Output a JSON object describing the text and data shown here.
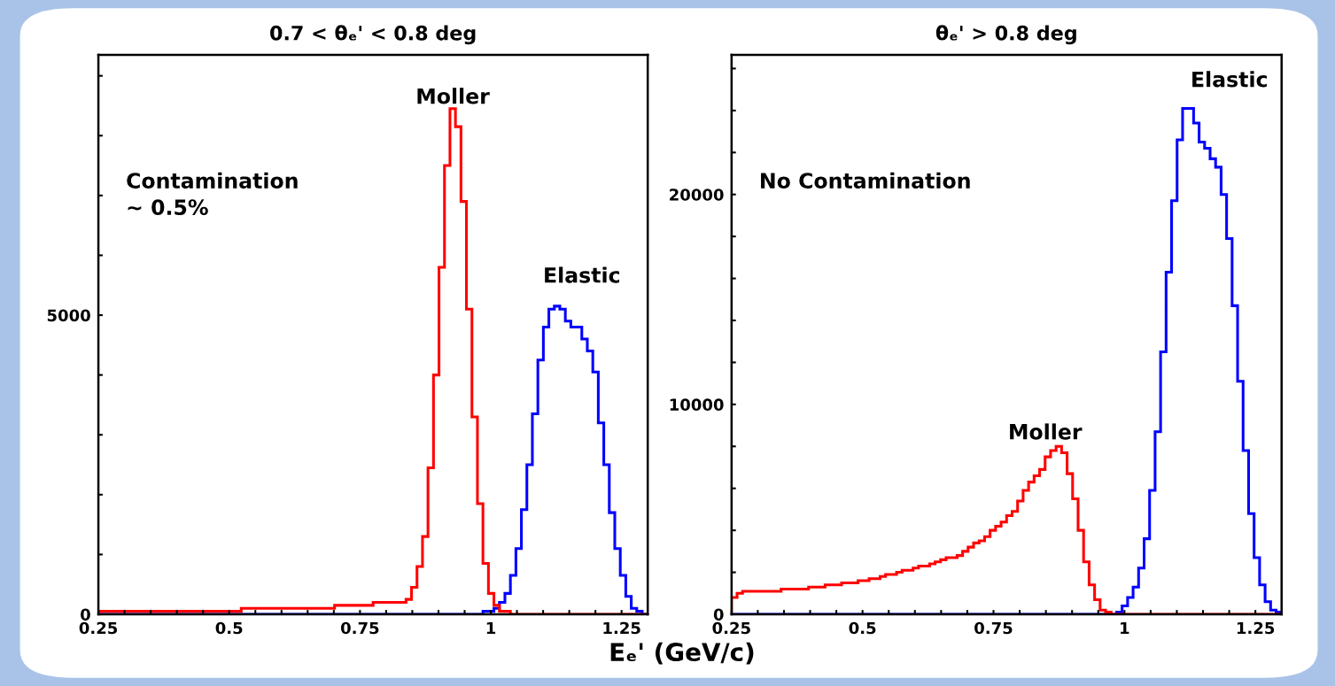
{
  "chart_data": [
    {
      "type": "histogram",
      "title": "0.7 < θₑ' < 0.8 deg",
      "bins": [
        0.25,
        0.2605,
        0.271,
        0.2815,
        0.292,
        0.3025,
        0.313,
        0.3235,
        0.334,
        0.3445,
        0.355,
        0.3655,
        0.376,
        0.3865,
        0.397,
        0.4075,
        0.418,
        0.4285,
        0.439,
        0.4495,
        0.46,
        0.4705,
        0.481,
        0.4915,
        0.502,
        0.5125,
        0.523,
        0.5335,
        0.544,
        0.5545,
        0.565,
        0.5755,
        0.586,
        0.5965,
        0.607,
        0.6175,
        0.628,
        0.6385,
        0.649,
        0.6595,
        0.67,
        0.6805,
        0.691,
        0.7015,
        0.712,
        0.7225,
        0.733,
        0.7435,
        0.754,
        0.7645,
        0.775,
        0.7855,
        0.796,
        0.8065,
        0.817,
        0.8275,
        0.838,
        0.8485,
        0.859,
        0.8695,
        0.88,
        0.8905,
        0.901,
        0.9115,
        0.922,
        0.9325,
        0.943,
        0.9535,
        0.964,
        0.9745,
        0.985,
        0.9955,
        1.006,
        1.0165,
        1.027,
        1.0375,
        1.048,
        1.0585,
        1.069,
        1.0795,
        1.09,
        1.1005,
        1.111,
        1.1215,
        1.132,
        1.1425,
        1.153,
        1.1635,
        1.174,
        1.1845,
        1.195,
        1.2055,
        1.216,
        1.2265,
        1.237,
        1.2475,
        1.258,
        1.2685,
        1.279,
        1.2895,
        1.3
      ],
      "series": [
        {
          "color": "#0000ff",
          "values": [
            0,
            0,
            0,
            0,
            0,
            0,
            0,
            0,
            0,
            0,
            0,
            0,
            0,
            0,
            0,
            0,
            0,
            0,
            0,
            0,
            0,
            0,
            0,
            0,
            0,
            0,
            0,
            0,
            0,
            0,
            0,
            0,
            0,
            0,
            0,
            0,
            0,
            0,
            0,
            0,
            0,
            0,
            0,
            0,
            0,
            0,
            0,
            0,
            0,
            0,
            0,
            0,
            0,
            0,
            0,
            0,
            0,
            0,
            0,
            0,
            0,
            0,
            0,
            0,
            0,
            0,
            0,
            0,
            0,
            0,
            50,
            50,
            100,
            200,
            350,
            650,
            1100,
            1750,
            2500,
            3350,
            4250,
            4800,
            5100,
            5150,
            5100,
            4900,
            4800,
            4800,
            4600,
            4400,
            4050,
            3200,
            2500,
            1700,
            1100,
            650,
            300,
            100,
            50,
            0
          ]
        },
        {
          "color": "#ff0000",
          "values": [
            50,
            50,
            50,
            50,
            50,
            50,
            50,
            50,
            50,
            50,
            50,
            50,
            50,
            50,
            50,
            50,
            50,
            50,
            50,
            50,
            50,
            50,
            50,
            50,
            50,
            50,
            100,
            100,
            100,
            100,
            100,
            100,
            100,
            100,
            100,
            100,
            100,
            100,
            100,
            100,
            100,
            100,
            100,
            150,
            150,
            150,
            150,
            150,
            150,
            150,
            200,
            200,
            200,
            200,
            200,
            200,
            250,
            450,
            800,
            1300,
            2450,
            4000,
            5800,
            7500,
            8450,
            8150,
            6900,
            5100,
            3300,
            1850,
            850,
            350,
            150,
            50,
            50,
            0,
            0,
            0,
            0,
            0,
            0,
            0,
            0,
            0,
            0,
            0,
            0,
            0,
            0,
            0,
            0,
            0,
            0,
            0,
            0,
            0,
            0,
            0,
            0,
            0
          ]
        }
      ],
      "xlim": [
        0.25,
        1.3
      ],
      "xticks": [
        {
          "value": 0.25,
          "label": "0.25"
        },
        {
          "value": 0.3,
          "label": null
        },
        {
          "value": 0.35,
          "label": null
        },
        {
          "value": 0.4,
          "label": null
        },
        {
          "value": 0.45,
          "label": null
        },
        0.5,
        {
          "value": 0.55,
          "label": null
        },
        {
          "value": 0.6,
          "label": null
        },
        {
          "value": 0.65,
          "label": null
        },
        {
          "value": 0.7,
          "label": null
        },
        0.75,
        {
          "value": 0.8,
          "label": null
        },
        {
          "value": 0.85,
          "label": null
        },
        {
          "value": 0.9,
          "label": null
        },
        {
          "value": 0.95,
          "label": null
        },
        1,
        {
          "value": 1.05,
          "label": null
        },
        {
          "value": 1.1,
          "label": null
        },
        {
          "value": 1.15,
          "label": null
        },
        {
          "value": 1.2,
          "label": null
        },
        1.25
      ],
      "ylim": [
        0,
        9350
      ],
      "yticks": [
        0,
        {
          "value": 1000,
          "label": null
        },
        {
          "value": 2000,
          "label": null
        },
        {
          "value": 3000,
          "label": null
        },
        {
          "value": 4000,
          "label": null
        },
        5000,
        {
          "value": 6000,
          "label": null
        },
        {
          "value": 7000,
          "label": null
        },
        {
          "value": 8000,
          "label": null
        },
        {
          "value": 9000,
          "label": null
        }
      ],
      "annotations": [
        "Moller",
        "Elastic",
        "Contamination\n~ 0.5%"
      ]
    },
    {
      "type": "histogram",
      "title": "θₑ' > 0.8 deg",
      "xlabel": "Eₑ' (GeV/c)",
      "bins": [
        0.25,
        0.2605,
        0.271,
        0.2815,
        0.292,
        0.3025,
        0.313,
        0.3235,
        0.334,
        0.3445,
        0.355,
        0.3655,
        0.376,
        0.3865,
        0.397,
        0.4075,
        0.418,
        0.4285,
        0.439,
        0.4495,
        0.46,
        0.4705,
        0.481,
        0.4915,
        0.502,
        0.5125,
        0.523,
        0.5335,
        0.544,
        0.5545,
        0.565,
        0.5755,
        0.586,
        0.5965,
        0.607,
        0.6175,
        0.628,
        0.6385,
        0.649,
        0.6595,
        0.67,
        0.6805,
        0.691,
        0.7015,
        0.712,
        0.7225,
        0.733,
        0.7435,
        0.754,
        0.7645,
        0.775,
        0.7855,
        0.796,
        0.8065,
        0.817,
        0.8275,
        0.838,
        0.8485,
        0.859,
        0.8695,
        0.88,
        0.8905,
        0.901,
        0.9115,
        0.922,
        0.9325,
        0.943,
        0.9535,
        0.964,
        0.9745,
        0.985,
        0.9955,
        1.006,
        1.0165,
        1.027,
        1.0375,
        1.048,
        1.0585,
        1.069,
        1.0795,
        1.09,
        1.1005,
        1.111,
        1.1215,
        1.132,
        1.1425,
        1.153,
        1.1635,
        1.174,
        1.1845,
        1.195,
        1.2055,
        1.216,
        1.2265,
        1.237,
        1.2475,
        1.258,
        1.2685,
        1.279,
        1.2895,
        1.3
      ],
      "series": [
        {
          "color": "#0000ff",
          "values": [
            0,
            0,
            0,
            0,
            0,
            0,
            0,
            0,
            0,
            0,
            0,
            0,
            0,
            0,
            0,
            0,
            0,
            0,
            0,
            0,
            0,
            0,
            0,
            0,
            0,
            0,
            0,
            0,
            0,
            0,
            0,
            0,
            0,
            0,
            0,
            0,
            0,
            0,
            0,
            0,
            0,
            0,
            0,
            0,
            0,
            0,
            0,
            0,
            0,
            0,
            0,
            0,
            0,
            0,
            0,
            0,
            0,
            0,
            0,
            0,
            0,
            0,
            0,
            0,
            0,
            0,
            0,
            0,
            0,
            0,
            100,
            400,
            800,
            1300,
            2200,
            3600,
            5900,
            8700,
            12500,
            16300,
            19700,
            22600,
            24100,
            24100,
            23400,
            22500,
            22200,
            21700,
            21300,
            20000,
            17900,
            14700,
            11100,
            7800,
            4800,
            2700,
            1400,
            600,
            200,
            100
          ]
        },
        {
          "color": "#ff0000",
          "values": [
            800,
            1000,
            1100,
            1100,
            1100,
            1100,
            1100,
            1100,
            1100,
            1200,
            1200,
            1200,
            1200,
            1200,
            1300,
            1300,
            1300,
            1400,
            1400,
            1400,
            1500,
            1500,
            1500,
            1600,
            1600,
            1700,
            1700,
            1800,
            1900,
            1900,
            2000,
            2100,
            2100,
            2200,
            2300,
            2300,
            2400,
            2500,
            2600,
            2700,
            2700,
            2800,
            3000,
            3200,
            3400,
            3500,
            3700,
            4000,
            4200,
            4400,
            4700,
            4900,
            5400,
            5900,
            6300,
            6600,
            6900,
            7500,
            7800,
            8000,
            7700,
            6700,
            5500,
            4000,
            2500,
            1400,
            700,
            200,
            100,
            0,
            0,
            0,
            0,
            0,
            0,
            0,
            0,
            0,
            0,
            0,
            0,
            0,
            0,
            0,
            0,
            0,
            0,
            0,
            0,
            0,
            0,
            0,
            0,
            0,
            0,
            0,
            0,
            0,
            0,
            0
          ]
        }
      ],
      "xlim": [
        0.25,
        1.3
      ],
      "xticks": [
        {
          "value": 0.25,
          "label": "0.25"
        },
        {
          "value": 0.3,
          "label": null
        },
        {
          "value": 0.35,
          "label": null
        },
        {
          "value": 0.4,
          "label": null
        },
        {
          "value": 0.45,
          "label": null
        },
        0.5,
        {
          "value": 0.55,
          "label": null
        },
        {
          "value": 0.6,
          "label": null
        },
        {
          "value": 0.65,
          "label": null
        },
        {
          "value": 0.7,
          "label": null
        },
        0.75,
        {
          "value": 0.8,
          "label": null
        },
        {
          "value": 0.85,
          "label": null
        },
        {
          "value": 0.9,
          "label": null
        },
        {
          "value": 0.95,
          "label": null
        },
        1,
        {
          "value": 1.05,
          "label": null
        },
        {
          "value": 1.1,
          "label": null
        },
        {
          "value": 1.15,
          "label": null
        },
        {
          "value": 1.2,
          "label": null
        },
        1.25
      ],
      "ylim": [
        0,
        26650
      ],
      "yticks": [
        0,
        {
          "value": 2000,
          "label": null
        },
        {
          "value": 4000,
          "label": null
        },
        {
          "value": 6000,
          "label": null
        },
        {
          "value": 8000,
          "label": null
        },
        10000,
        {
          "value": 12000,
          "label": null
        },
        {
          "value": 14000,
          "label": null
        },
        {
          "value": 16000,
          "label": null
        },
        {
          "value": 18000,
          "label": null
        },
        20000,
        {
          "value": 22000,
          "label": null
        },
        {
          "value": 24000,
          "label": null
        },
        {
          "value": 26000,
          "label": null
        }
      ],
      "annotations": [
        "Moller",
        "Elastic",
        "No Contamination"
      ]
    }
  ]
}
